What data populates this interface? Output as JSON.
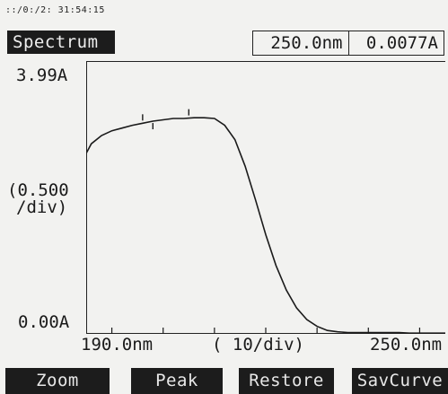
{
  "status": {
    "timestamp": "::/0:/2: 31:54:15"
  },
  "mode": {
    "label": "Spectrum"
  },
  "readout": {
    "wavelength": "250.0nm",
    "absorbance": "0.0077A"
  },
  "y_axis": {
    "max_label": "3.99A",
    "scale_line1": "(0.500",
    "scale_line2": "/div)",
    "min_label": "0.00A"
  },
  "x_axis": {
    "start_label": "190.0nm",
    "scale_label": "(  10/div)",
    "end_label": "250.0nm"
  },
  "softkeys": [
    {
      "label": "Zoom"
    },
    {
      "label": "Peak"
    },
    {
      "label": "Restore"
    },
    {
      "label": "SavCurve"
    }
  ],
  "colors": {
    "screen_bg": "#f2f2f0",
    "ink": "#1a1a1a",
    "softkey_bg": "#1c1c1c"
  },
  "chart_data": {
    "type": "line",
    "x_unit": "nm",
    "y_unit": "A",
    "xlim": [
      185,
      255
    ],
    "ylim": [
      0,
      3.99
    ],
    "x": [
      185,
      186,
      188,
      190,
      192,
      194,
      196,
      198,
      200,
      202,
      204,
      206,
      208,
      210,
      212,
      214,
      216,
      218,
      220,
      222,
      224,
      226,
      228,
      230,
      232,
      234,
      236,
      238,
      240,
      242,
      244,
      246,
      248,
      250,
      252,
      254,
      255
    ],
    "y": [
      2.64,
      2.78,
      2.9,
      2.97,
      3.01,
      3.05,
      3.08,
      3.11,
      3.13,
      3.15,
      3.15,
      3.16,
      3.16,
      3.15,
      3.05,
      2.84,
      2.45,
      1.96,
      1.45,
      1.0,
      0.64,
      0.38,
      0.21,
      0.11,
      0.05,
      0.03,
      0.02,
      0.02,
      0.02,
      0.02,
      0.02,
      0.02,
      0.01,
      0.01,
      0.01,
      0.01,
      0.01
    ],
    "peak_markers_x": [
      196,
      198,
      205
    ]
  }
}
